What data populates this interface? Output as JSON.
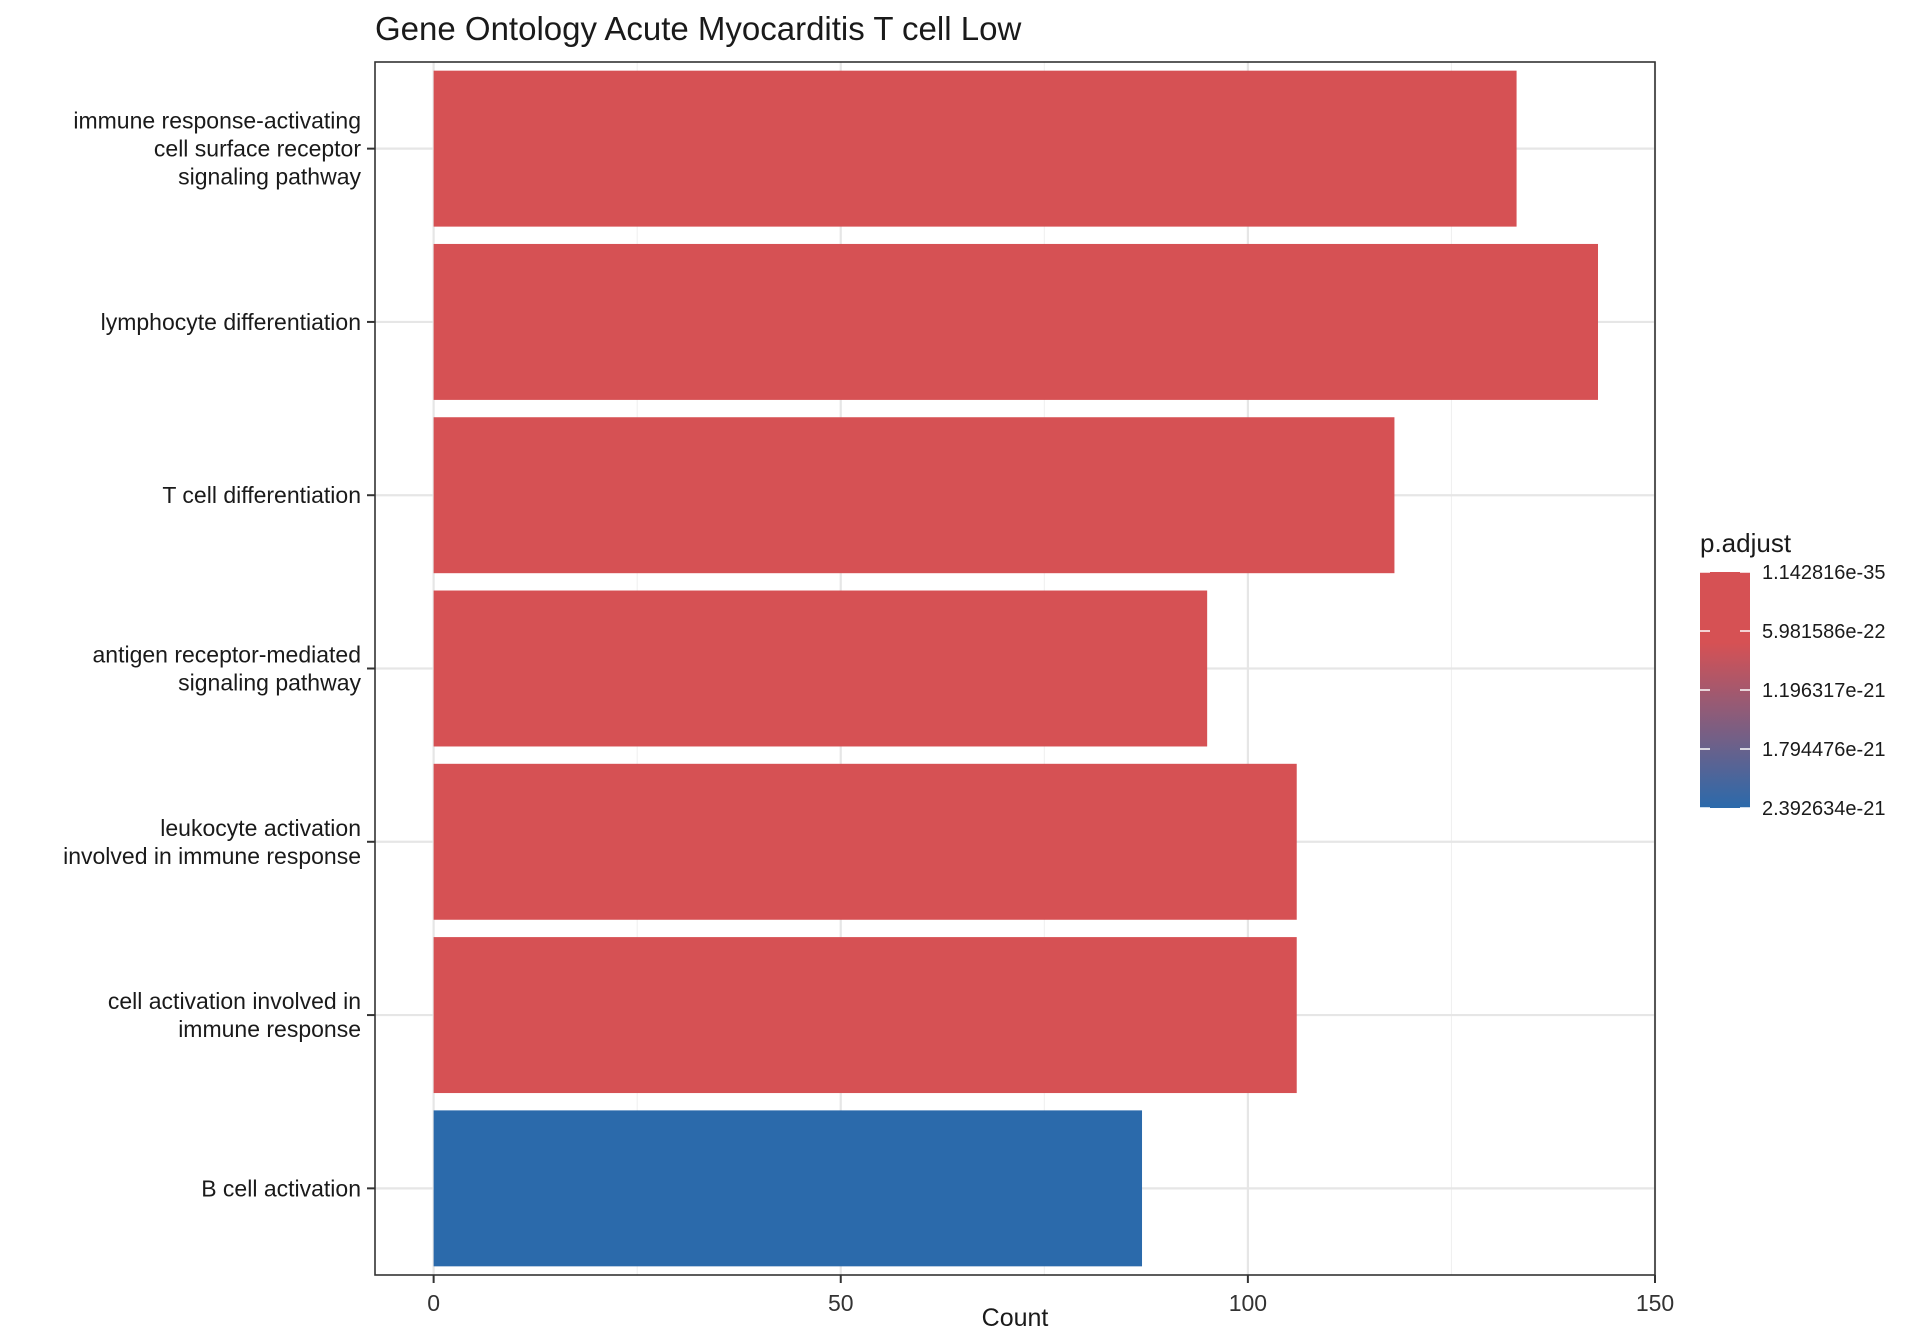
{
  "chart_data": {
    "type": "bar",
    "orientation": "horizontal",
    "title": "Gene Ontology Acute Myocarditis T cell Low",
    "xlabel": "Count",
    "ylabel": "",
    "xlim": [
      -7.2,
      150
    ],
    "xticks": [
      0,
      50,
      100,
      150
    ],
    "grid": true,
    "legend_position": "right",
    "categories": [
      "immune response-activating\ncell surface receptor\nsignaling pathway",
      "lymphocyte differentiation",
      "T cell differentiation",
      "antigen receptor-mediated\nsignaling pathway",
      "leukocyte activation\ninvolved in immune response",
      "cell activation involved in\nimmune response",
      "B cell activation"
    ],
    "values": [
      133,
      143,
      118,
      95,
      106,
      106,
      87
    ],
    "p_adjust": [
      1.142816e-35,
      1.142816e-35,
      1.142816e-35,
      1.142816e-35,
      1.142816e-35,
      1.142816e-35,
      2.392634e-21
    ],
    "colors": [
      "#d65154",
      "#d65154",
      "#d65154",
      "#d65154",
      "#d65154",
      "#d65154",
      "#2b6aab"
    ],
    "legend": {
      "title": "p.adjust",
      "low_color": "#d65154",
      "high_color": "#2b6aab",
      "ticks": [
        "1.142816e-35",
        "5.981586e-22",
        "1.196317e-21",
        "1.794476e-21",
        "2.392634e-21"
      ]
    }
  }
}
